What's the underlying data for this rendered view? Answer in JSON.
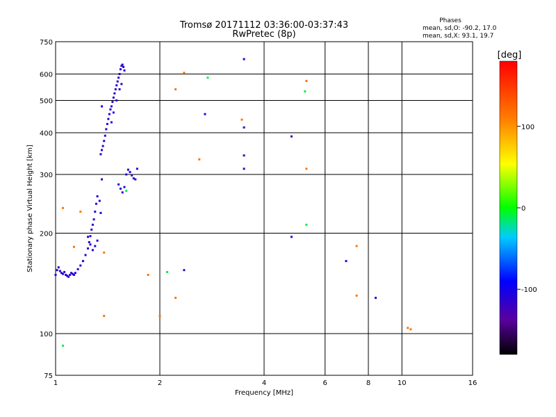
{
  "chart_data": {
    "type": "scatter",
    "title": "Tromsø 20171112 03:36:00-03:37:43",
    "subtitle": "RwPretec (8p)",
    "xlabel": "Frequency [MHz]",
    "ylabel": "Stationary phase Virtual Height [km]",
    "x_scale": "log",
    "y_scale": "log",
    "xlim": [
      1,
      16
    ],
    "ylim": [
      75,
      750
    ],
    "x_ticks": [
      "1",
      "2",
      "4",
      "6",
      "8",
      "10",
      "16"
    ],
    "x_tick_values": [
      1,
      2,
      4,
      6,
      8,
      10,
      16
    ],
    "y_ticks": [
      "75",
      "100",
      "200",
      "300",
      "400",
      "500",
      "600",
      "750"
    ],
    "y_tick_values": [
      75,
      100,
      200,
      300,
      400,
      500,
      600,
      750
    ],
    "grid": true,
    "legend_placement": "top-right",
    "legend": {
      "heading": "Phases",
      "line1": "mean, sd,O: -90.2, 17.0",
      "line2": "mean, sd,X:  93.1, 19.7"
    },
    "colorbar": {
      "unit": "[deg]",
      "range": [
        -180,
        180
      ],
      "ticks": [
        "100",
        "0",
        "-100"
      ],
      "tick_values": [
        100,
        0,
        -100
      ]
    },
    "points": [
      {
        "x": 1.0,
        "y": 150,
        "c": -110
      },
      {
        "x": 1.01,
        "y": 155,
        "c": -115
      },
      {
        "x": 1.02,
        "y": 158,
        "c": -112
      },
      {
        "x": 1.03,
        "y": 154,
        "c": -108
      },
      {
        "x": 1.04,
        "y": 152,
        "c": -110
      },
      {
        "x": 1.05,
        "y": 151,
        "c": -105
      },
      {
        "x": 1.06,
        "y": 153,
        "c": -112
      },
      {
        "x": 1.07,
        "y": 150,
        "c": -110
      },
      {
        "x": 1.08,
        "y": 149,
        "c": -108
      },
      {
        "x": 1.09,
        "y": 148,
        "c": -115
      },
      {
        "x": 1.1,
        "y": 150,
        "c": -110
      },
      {
        "x": 1.11,
        "y": 152,
        "c": -112
      },
      {
        "x": 1.12,
        "y": 151,
        "c": -108
      },
      {
        "x": 1.13,
        "y": 150,
        "c": -110
      },
      {
        "x": 1.14,
        "y": 152,
        "c": -105
      },
      {
        "x": 1.16,
        "y": 156,
        "c": -110
      },
      {
        "x": 1.18,
        "y": 160,
        "c": -112
      },
      {
        "x": 1.2,
        "y": 165,
        "c": -108
      },
      {
        "x": 1.22,
        "y": 172,
        "c": -110
      },
      {
        "x": 1.24,
        "y": 180,
        "c": -115
      },
      {
        "x": 1.25,
        "y": 188,
        "c": -108
      },
      {
        "x": 1.26,
        "y": 196,
        "c": -110
      },
      {
        "x": 1.27,
        "y": 205,
        "c": -112
      },
      {
        "x": 1.28,
        "y": 212,
        "c": -110
      },
      {
        "x": 1.29,
        "y": 220,
        "c": -108
      },
      {
        "x": 1.3,
        "y": 232,
        "c": -110
      },
      {
        "x": 1.31,
        "y": 245,
        "c": -115
      },
      {
        "x": 1.32,
        "y": 258,
        "c": -110
      },
      {
        "x": 1.24,
        "y": 195,
        "c": -112
      },
      {
        "x": 1.26,
        "y": 185,
        "c": -108
      },
      {
        "x": 1.28,
        "y": 178,
        "c": -110
      },
      {
        "x": 1.3,
        "y": 183,
        "c": -105
      },
      {
        "x": 1.32,
        "y": 190,
        "c": -110
      },
      {
        "x": 1.35,
        "y": 230,
        "c": -112
      },
      {
        "x": 1.35,
        "y": 345,
        "c": -110
      },
      {
        "x": 1.36,
        "y": 355,
        "c": -108
      },
      {
        "x": 1.37,
        "y": 365,
        "c": -110
      },
      {
        "x": 1.38,
        "y": 378,
        "c": -112
      },
      {
        "x": 1.39,
        "y": 392,
        "c": -110
      },
      {
        "x": 1.4,
        "y": 410,
        "c": -108
      },
      {
        "x": 1.41,
        "y": 425,
        "c": -115
      },
      {
        "x": 1.42,
        "y": 440,
        "c": -110
      },
      {
        "x": 1.43,
        "y": 455,
        "c": -112
      },
      {
        "x": 1.44,
        "y": 470,
        "c": -108
      },
      {
        "x": 1.45,
        "y": 480,
        "c": -110
      },
      {
        "x": 1.46,
        "y": 495,
        "c": -112
      },
      {
        "x": 1.47,
        "y": 510,
        "c": -108
      },
      {
        "x": 1.48,
        "y": 525,
        "c": -110
      },
      {
        "x": 1.49,
        "y": 540,
        "c": -115
      },
      {
        "x": 1.5,
        "y": 555,
        "c": -110
      },
      {
        "x": 1.51,
        "y": 570,
        "c": -108
      },
      {
        "x": 1.52,
        "y": 585,
        "c": -112
      },
      {
        "x": 1.53,
        "y": 600,
        "c": -110
      },
      {
        "x": 1.54,
        "y": 620,
        "c": -108
      },
      {
        "x": 1.55,
        "y": 635,
        "c": -110
      },
      {
        "x": 1.56,
        "y": 640,
        "c": -112
      },
      {
        "x": 1.57,
        "y": 630,
        "c": -108
      },
      {
        "x": 1.58,
        "y": 615,
        "c": -110
      },
      {
        "x": 1.45,
        "y": 430,
        "c": -110
      },
      {
        "x": 1.47,
        "y": 460,
        "c": -112
      },
      {
        "x": 1.5,
        "y": 500,
        "c": -108
      },
      {
        "x": 1.53,
        "y": 540,
        "c": -110
      },
      {
        "x": 1.55,
        "y": 560,
        "c": -112
      },
      {
        "x": 1.52,
        "y": 280,
        "c": -110
      },
      {
        "x": 1.54,
        "y": 272,
        "c": -112
      },
      {
        "x": 1.56,
        "y": 265,
        "c": -108
      },
      {
        "x": 1.58,
        "y": 275,
        "c": -110
      },
      {
        "x": 1.6,
        "y": 300,
        "c": -112
      },
      {
        "x": 1.62,
        "y": 310,
        "c": -108
      },
      {
        "x": 1.64,
        "y": 305,
        "c": -110
      },
      {
        "x": 1.66,
        "y": 298,
        "c": -112
      },
      {
        "x": 1.68,
        "y": 292,
        "c": -108
      },
      {
        "x": 1.7,
        "y": 290,
        "c": -110
      },
      {
        "x": 1.72,
        "y": 312,
        "c": -112
      },
      {
        "x": 1.36,
        "y": 480,
        "c": -100
      },
      {
        "x": 1.36,
        "y": 290,
        "c": -110
      },
      {
        "x": 1.34,
        "y": 250,
        "c": -110
      },
      {
        "x": 1.05,
        "y": 238,
        "c": 115
      },
      {
        "x": 1.18,
        "y": 232,
        "c": 115
      },
      {
        "x": 1.13,
        "y": 182,
        "c": 115
      },
      {
        "x": 1.38,
        "y": 175,
        "c": 115
      },
      {
        "x": 1.85,
        "y": 150,
        "c": 115
      },
      {
        "x": 1.38,
        "y": 113,
        "c": 115
      },
      {
        "x": 2.0,
        "y": 113,
        "c": 115
      },
      {
        "x": 2.22,
        "y": 128,
        "c": 115
      },
      {
        "x": 2.22,
        "y": 540,
        "c": 115
      },
      {
        "x": 2.6,
        "y": 333,
        "c": 115
      },
      {
        "x": 2.35,
        "y": 605,
        "c": 115
      },
      {
        "x": 3.45,
        "y": 438,
        "c": 115
      },
      {
        "x": 5.3,
        "y": 572,
        "c": 115
      },
      {
        "x": 5.3,
        "y": 312,
        "c": 115
      },
      {
        "x": 7.4,
        "y": 183,
        "c": 115
      },
      {
        "x": 7.4,
        "y": 130,
        "c": 115
      },
      {
        "x": 10.4,
        "y": 104,
        "c": 115
      },
      {
        "x": 10.6,
        "y": 103,
        "c": 115
      },
      {
        "x": 1.05,
        "y": 92,
        "c": -10
      },
      {
        "x": 1.6,
        "y": 268,
        "c": -10
      },
      {
        "x": 2.75,
        "y": 585,
        "c": -10
      },
      {
        "x": 5.25,
        "y": 532,
        "c": -10
      },
      {
        "x": 5.3,
        "y": 212,
        "c": -10
      },
      {
        "x": 2.1,
        "y": 153,
        "c": -10
      },
      {
        "x": 2.7,
        "y": 455,
        "c": -110
      },
      {
        "x": 3.5,
        "y": 665,
        "c": -110
      },
      {
        "x": 3.5,
        "y": 415,
        "c": -120
      },
      {
        "x": 3.5,
        "y": 342,
        "c": -120
      },
      {
        "x": 3.5,
        "y": 312,
        "c": -120
      },
      {
        "x": 4.8,
        "y": 390,
        "c": -120
      },
      {
        "x": 4.8,
        "y": 195,
        "c": -110
      },
      {
        "x": 6.9,
        "y": 165,
        "c": -110
      },
      {
        "x": 8.4,
        "y": 128,
        "c": -110
      },
      {
        "x": 2.35,
        "y": 155,
        "c": -120
      }
    ]
  }
}
